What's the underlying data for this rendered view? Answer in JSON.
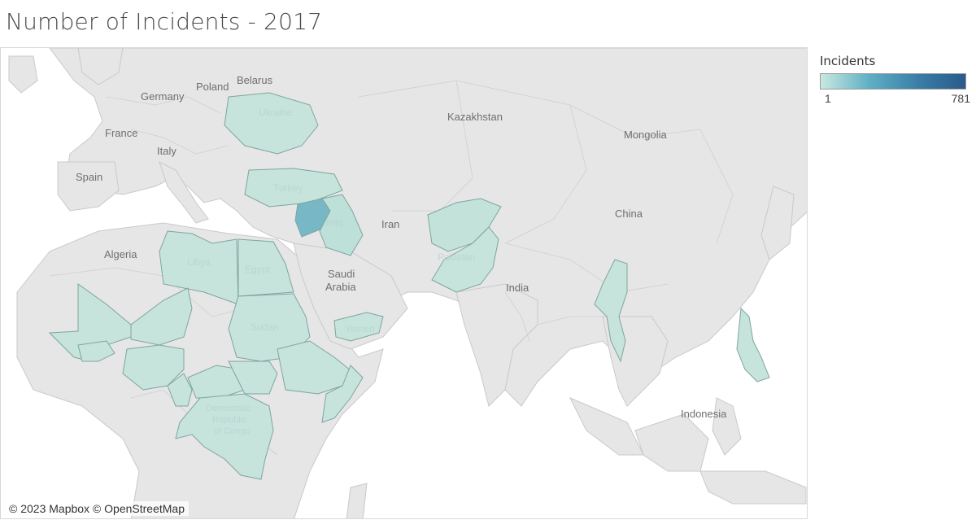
{
  "title": "Number of Incidents - 2017",
  "legend": {
    "title": "Incidents",
    "min": "1",
    "max": "781",
    "color_low": "#c9e8e1",
    "color_high": "#2a5a8a"
  },
  "attribution": "© 2023 Mapbox © OpenStreetMap",
  "map_labels": [
    "Poland",
    "Belarus",
    "Germany",
    "France",
    "Italy",
    "Spain",
    "Kazakhstan",
    "Mongolia",
    "China",
    "Iran",
    "Algeria",
    "India",
    "Indonesia"
  ],
  "highlighted_countries": [
    {
      "name": "Ukraine",
      "label": "Ukraine",
      "color": "#c6e3dc"
    },
    {
      "name": "Turkey",
      "label": "Turkey",
      "color": "#c6e3dc"
    },
    {
      "name": "Syria",
      "label": "",
      "color": "#77b7c6"
    },
    {
      "name": "Iraq",
      "label": "Iraq",
      "color": "#bde0d8"
    },
    {
      "name": "Libya",
      "label": "Libya",
      "color": "#c6e3dc"
    },
    {
      "name": "Egypt",
      "label": "Egypt",
      "color": "#c6e3dc"
    },
    {
      "name": "Sudan",
      "label": "Sudan",
      "color": "#c6e3dc"
    },
    {
      "name": "Yemen",
      "label": "Yemen",
      "color": "#c6e3dc"
    },
    {
      "name": "Afghanistan",
      "label": "",
      "color": "#c2e2da"
    },
    {
      "name": "Pakistan",
      "label": "Pakistan",
      "color": "#c6e3dc"
    },
    {
      "name": "Myanmar",
      "label": "",
      "color": "#c6e3dc"
    },
    {
      "name": "Philippines",
      "label": "",
      "color": "#c6e3dc"
    },
    {
      "name": "Mali",
      "label": "",
      "color": "#c6e3dc"
    },
    {
      "name": "Niger",
      "label": "",
      "color": "#c6e3dc"
    },
    {
      "name": "Nigeria",
      "label": "",
      "color": "#c6e3dc"
    },
    {
      "name": "Burkina Faso",
      "label": "",
      "color": "#c6e3dc"
    },
    {
      "name": "Cameroon",
      "label": "",
      "color": "#c6e3dc"
    },
    {
      "name": "Central African Republic",
      "label": "",
      "color": "#c6e3dc"
    },
    {
      "name": "South Sudan",
      "label": "",
      "color": "#c6e3dc"
    },
    {
      "name": "Ethiopia",
      "label": "",
      "color": "#c6e3dc"
    },
    {
      "name": "Somalia",
      "label": "",
      "color": "#c6e3dc"
    },
    {
      "name": "Democratic Republic of Congo",
      "label": "Democratic Republic of Congo",
      "color": "#c6e3dc"
    }
  ]
}
